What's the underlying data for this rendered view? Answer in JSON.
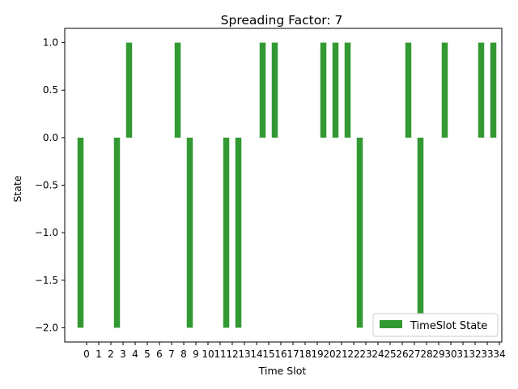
{
  "chart_data": {
    "type": "bar",
    "title": "Spreading Factor: 7",
    "xlabel": "Time Slot",
    "ylabel": "State",
    "categories": [
      0,
      1,
      2,
      3,
      4,
      5,
      6,
      7,
      8,
      9,
      10,
      11,
      12,
      13,
      14,
      15,
      16,
      17,
      18,
      19,
      20,
      21,
      22,
      23,
      24,
      25,
      26,
      27,
      28,
      29,
      30,
      31,
      32,
      33,
      34
    ],
    "series": [
      {
        "name": "TimeSlot State",
        "color": "#339933",
        "points": [
          {
            "x": 0,
            "y": -2
          },
          {
            "x": 3,
            "y": -2
          },
          {
            "x": 4,
            "y": 1
          },
          {
            "x": 8,
            "y": 1
          },
          {
            "x": 9,
            "y": -2
          },
          {
            "x": 12,
            "y": -2
          },
          {
            "x": 13,
            "y": -2
          },
          {
            "x": 15,
            "y": 1
          },
          {
            "x": 16,
            "y": 1
          },
          {
            "x": 20,
            "y": 1
          },
          {
            "x": 21,
            "y": 1
          },
          {
            "x": 22,
            "y": 1
          },
          {
            "x": 23,
            "y": -2
          },
          {
            "x": 27,
            "y": 1
          },
          {
            "x": 28,
            "y": -2
          },
          {
            "x": 30,
            "y": 1
          },
          {
            "x": 33,
            "y": 1
          },
          {
            "x": 34,
            "y": 1
          }
        ]
      }
    ],
    "yticks": [
      -2.0,
      -1.5,
      -1.0,
      -0.5,
      0.0,
      0.5,
      1.0
    ],
    "ytick_labels": [
      "−2.0",
      "−1.5",
      "−1.0",
      "−0.5",
      "0.0",
      "0.5",
      "1.0"
    ],
    "ylim": [
      -2.15,
      1.15
    ],
    "xlim": [
      -1.3,
      34.7
    ],
    "grid": false,
    "legend_position": "lower-right"
  }
}
